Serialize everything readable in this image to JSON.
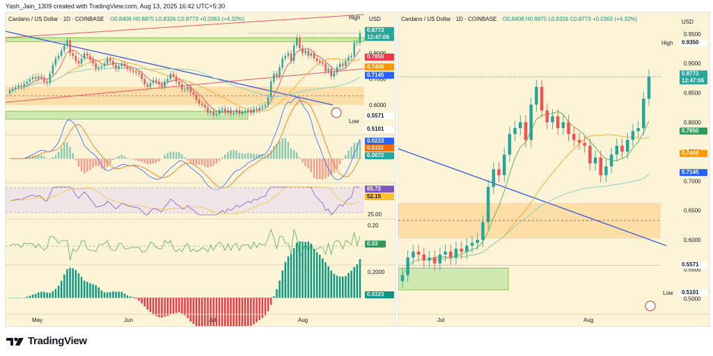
{
  "header": {
    "credit": "Yash_Jain_1309 created with TradingView.com, Aug 13, 2025 16:42 UTC+5:30"
  },
  "footer": {
    "brand": "TradingView"
  },
  "theme": {
    "bull": "#26a69a",
    "bear": "#ef5350",
    "trendline": "#3d5fd9",
    "channel": "#e0566a",
    "zone": "#ffca7a",
    "support": "#8bc34a"
  },
  "chart_data": [
    {
      "type": "candlestick",
      "panel": "left",
      "title": "Cardano / US Dollar · 1D · COINBASE",
      "ohlc_text": "O0.8408 H0.8875 L0.8326 C0.8773 +0.0363 (+4.32%)",
      "currency": "USD",
      "x_ticks": [
        "May",
        "Jun",
        "Jul",
        "Aug"
      ],
      "y_ticks": [
        0.8,
        0.7,
        0.6
      ],
      "ylim": [
        0.5,
        0.92
      ],
      "close": [
        0.655,
        0.662,
        0.668,
        0.675,
        0.67,
        0.682,
        0.69,
        0.7,
        0.708,
        0.702,
        0.71,
        0.705,
        0.69,
        0.685,
        0.72,
        0.755,
        0.78,
        0.79,
        0.81,
        0.83,
        0.85,
        0.8,
        0.79,
        0.77,
        0.76,
        0.78,
        0.8,
        0.79,
        0.775,
        0.76,
        0.74,
        0.745,
        0.75,
        0.76,
        0.78,
        0.77,
        0.755,
        0.74,
        0.75,
        0.76,
        0.75,
        0.74,
        0.735,
        0.73,
        0.725,
        0.72,
        0.7,
        0.68,
        0.67,
        0.685,
        0.695,
        0.69,
        0.68,
        0.67,
        0.69,
        0.7,
        0.72,
        0.71,
        0.69,
        0.68,
        0.66,
        0.66,
        0.67,
        0.65,
        0.64,
        0.62,
        0.605,
        0.6,
        0.59,
        0.57,
        0.575,
        0.56,
        0.565,
        0.58,
        0.585,
        0.57,
        0.58,
        0.565,
        0.57,
        0.58,
        0.565,
        0.57,
        0.575,
        0.58,
        0.57,
        0.585,
        0.58,
        0.59,
        0.595,
        0.6,
        0.63,
        0.69,
        0.72,
        0.71,
        0.745,
        0.78,
        0.79,
        0.8,
        0.77,
        0.83,
        0.86,
        0.82,
        0.8,
        0.81,
        0.79,
        0.8,
        0.78,
        0.77,
        0.765,
        0.76,
        0.73,
        0.74,
        0.71,
        0.725,
        0.745,
        0.76,
        0.75,
        0.77,
        0.785,
        0.79,
        0.84,
        0.8408,
        0.8773
      ],
      "price_labels": [
        {
          "value": "0.8773",
          "time": "12:47:06",
          "color": "#26a69a"
        },
        {
          "value": "0.7850",
          "color": "#f23645"
        },
        {
          "value": "0.7469",
          "color": "#ff9800"
        },
        {
          "value": "0.7145",
          "color": "#2962ff"
        },
        {
          "value": "0.5571",
          "color": "#ffffff"
        },
        {
          "value": "0.5101",
          "color": "#ffffff"
        }
      ],
      "high_label": "High",
      "low_label": "Low",
      "indicators": [
        {
          "name": "MACD",
          "values": [
            "0.0223",
            "0.0151",
            "0.0072"
          ]
        },
        {
          "name": "RSI",
          "values": [
            "65.72",
            "52.15"
          ],
          "levels": [
            "25.00"
          ]
        },
        {
          "name": "Oscillator",
          "values": [
            "0.03"
          ],
          "levels": [
            "0.20"
          ]
        },
        {
          "name": "Histogram",
          "values": [
            "0.0323"
          ],
          "levels": [
            "0.2000"
          ]
        }
      ]
    },
    {
      "type": "candlestick",
      "panel": "right",
      "title": "Cardano / US Dollar · 1D · COINBASE",
      "ohlc_text": "O0.8408 H0.8875 L0.8326 C0.8773 +0.0363 (+4.32%)",
      "currency": "USD",
      "x_ticks": [
        "Jul",
        "Aug"
      ],
      "y_ticks": [
        0.95,
        0.9,
        0.85,
        0.8,
        0.75,
        0.7,
        0.65,
        0.6,
        0.55,
        0.5
      ],
      "ylim": [
        0.49,
        0.97
      ],
      "close": [
        0.54,
        0.57,
        0.58,
        0.575,
        0.565,
        0.57,
        0.56,
        0.575,
        0.58,
        0.57,
        0.585,
        0.58,
        0.59,
        0.595,
        0.6,
        0.63,
        0.69,
        0.72,
        0.71,
        0.745,
        0.78,
        0.79,
        0.8,
        0.77,
        0.83,
        0.86,
        0.82,
        0.8,
        0.81,
        0.79,
        0.8,
        0.78,
        0.77,
        0.765,
        0.76,
        0.73,
        0.74,
        0.71,
        0.725,
        0.745,
        0.76,
        0.75,
        0.77,
        0.785,
        0.79,
        0.84,
        0.8773
      ],
      "price_labels": [
        {
          "value": "0.9350",
          "label": "High"
        },
        {
          "value": "0.8773",
          "time": "12:47:06",
          "color": "#26a69a"
        },
        {
          "value": "0.7850",
          "color": "#2e9b5a"
        },
        {
          "value": "0.7469",
          "color": "#ff9800"
        },
        {
          "value": "0.7145",
          "color": "#2962ff"
        },
        {
          "value": "0.5571",
          "color": "#ffffff"
        },
        {
          "value": "0.5101",
          "label": "Low"
        }
      ]
    }
  ]
}
